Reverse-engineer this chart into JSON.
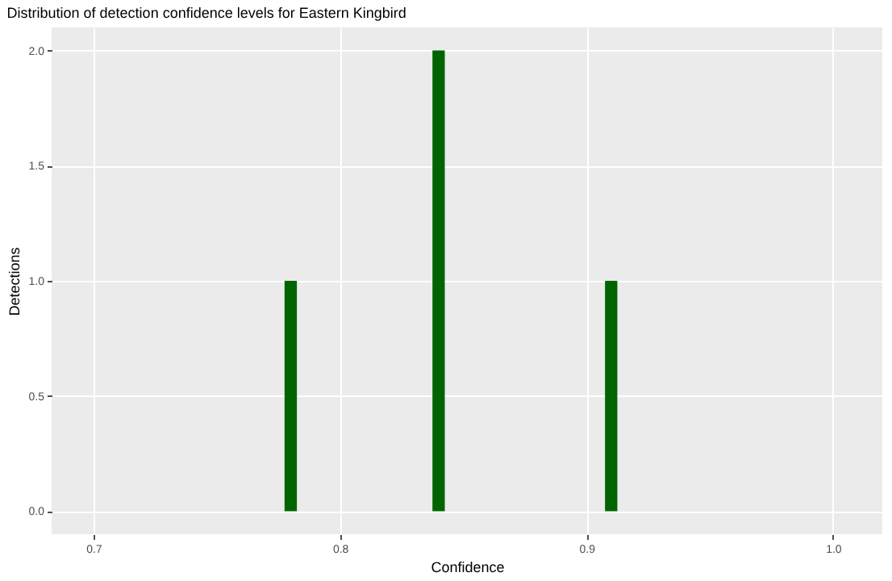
{
  "chart_data": {
    "type": "histogram",
    "title": "Distribution of detection confidence levels for Eastern Kingbird",
    "xlabel": "Confidence",
    "ylabel": "Detections",
    "bins": [
      0.7775,
      0.7825,
      0.7875,
      0.7925,
      0.7975,
      0.8025,
      0.8075,
      0.8125,
      0.8175,
      0.8225,
      0.8275,
      0.8325,
      0.8375,
      0.8425,
      0.8475,
      0.8525,
      0.8575,
      0.8625,
      0.8675,
      0.8725,
      0.8775,
      0.8825,
      0.8875,
      0.8925,
      0.8975,
      0.9025,
      0.9075,
      0.9125
    ],
    "values": [
      1,
      0,
      0,
      0,
      0,
      0,
      0,
      0,
      0,
      0,
      0,
      0,
      2,
      0,
      0,
      0,
      0,
      0,
      0,
      0,
      0,
      0,
      0,
      0,
      0,
      0,
      1
    ],
    "color": "#006400",
    "xlim": [
      0.683,
      1.02
    ],
    "ylim": [
      -0.1,
      2.1
    ],
    "xticks": [
      0.7,
      0.8,
      0.9,
      {
        "value": 1.0,
        "label": "1.0"
      }
    ],
    "yticks": [
      {
        "value": 0,
        "label": "0.0"
      },
      0.5,
      {
        "value": 1.0,
        "label": "1.0"
      },
      1.5,
      {
        "value": 2.0,
        "label": "2.0"
      }
    ],
    "grid": true
  }
}
